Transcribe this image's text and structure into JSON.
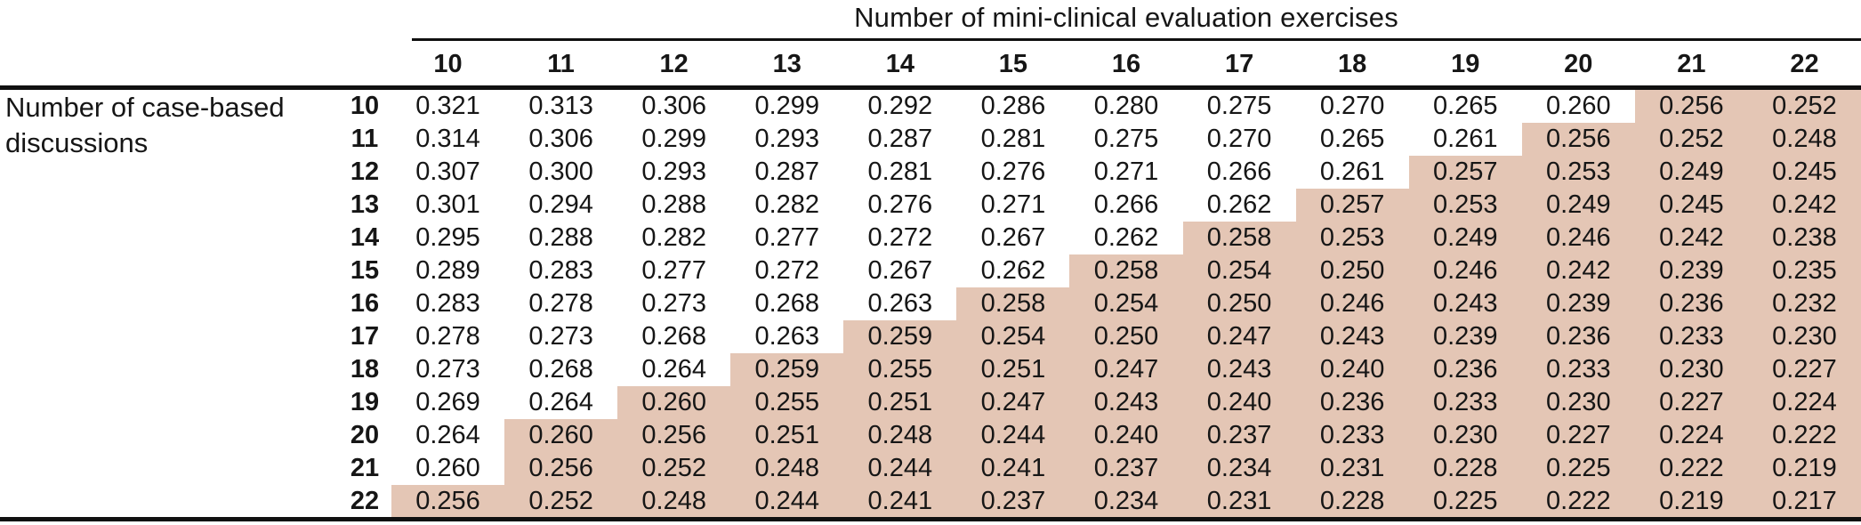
{
  "colors": {
    "highlight": "#e4c6b5",
    "rule": "#101010",
    "text": "#161616",
    "background": "#ffffff"
  },
  "table": {
    "column_group_title": "Number of mini-clinical evaluation exercises",
    "row_group_title_line1": "Number of case-based",
    "row_group_title_line2": "discussions",
    "columns": [
      "10",
      "11",
      "12",
      "13",
      "14",
      "15",
      "16",
      "17",
      "18",
      "19",
      "20",
      "21",
      "22"
    ],
    "rows": [
      {
        "label": "10",
        "highlight_from": 11,
        "values": [
          "0.321",
          "0.313",
          "0.306",
          "0.299",
          "0.292",
          "0.286",
          "0.280",
          "0.275",
          "0.270",
          "0.265",
          "0.260",
          "0.256",
          "0.252"
        ]
      },
      {
        "label": "11",
        "highlight_from": 10,
        "values": [
          "0.314",
          "0.306",
          "0.299",
          "0.293",
          "0.287",
          "0.281",
          "0.275",
          "0.270",
          "0.265",
          "0.261",
          "0.256",
          "0.252",
          "0.248"
        ]
      },
      {
        "label": "12",
        "highlight_from": 9,
        "values": [
          "0.307",
          "0.300",
          "0.293",
          "0.287",
          "0.281",
          "0.276",
          "0.271",
          "0.266",
          "0.261",
          "0.257",
          "0.253",
          "0.249",
          "0.245"
        ]
      },
      {
        "label": "13",
        "highlight_from": 8,
        "values": [
          "0.301",
          "0.294",
          "0.288",
          "0.282",
          "0.276",
          "0.271",
          "0.266",
          "0.262",
          "0.257",
          "0.253",
          "0.249",
          "0.245",
          "0.242"
        ]
      },
      {
        "label": "14",
        "highlight_from": 7,
        "values": [
          "0.295",
          "0.288",
          "0.282",
          "0.277",
          "0.272",
          "0.267",
          "0.262",
          "0.258",
          "0.253",
          "0.249",
          "0.246",
          "0.242",
          "0.238"
        ]
      },
      {
        "label": "15",
        "highlight_from": 6,
        "values": [
          "0.289",
          "0.283",
          "0.277",
          "0.272",
          "0.267",
          "0.262",
          "0.258",
          "0.254",
          "0.250",
          "0.246",
          "0.242",
          "0.239",
          "0.235"
        ]
      },
      {
        "label": "16",
        "highlight_from": 5,
        "values": [
          "0.283",
          "0.278",
          "0.273",
          "0.268",
          "0.263",
          "0.258",
          "0.254",
          "0.250",
          "0.246",
          "0.243",
          "0.239",
          "0.236",
          "0.232"
        ]
      },
      {
        "label": "17",
        "highlight_from": 4,
        "values": [
          "0.278",
          "0.273",
          "0.268",
          "0.263",
          "0.259",
          "0.254",
          "0.250",
          "0.247",
          "0.243",
          "0.239",
          "0.236",
          "0.233",
          "0.230"
        ]
      },
      {
        "label": "18",
        "highlight_from": 3,
        "values": [
          "0.273",
          "0.268",
          "0.264",
          "0.259",
          "0.255",
          "0.251",
          "0.247",
          "0.243",
          "0.240",
          "0.236",
          "0.233",
          "0.230",
          "0.227"
        ]
      },
      {
        "label": "19",
        "highlight_from": 2,
        "values": [
          "0.269",
          "0.264",
          "0.260",
          "0.255",
          "0.251",
          "0.247",
          "0.243",
          "0.240",
          "0.236",
          "0.233",
          "0.230",
          "0.227",
          "0.224"
        ]
      },
      {
        "label": "20",
        "highlight_from": 1,
        "values": [
          "0.264",
          "0.260",
          "0.256",
          "0.251",
          "0.248",
          "0.244",
          "0.240",
          "0.237",
          "0.233",
          "0.230",
          "0.227",
          "0.224",
          "0.222"
        ]
      },
      {
        "label": "21",
        "highlight_from": 1,
        "values": [
          "0.260",
          "0.256",
          "0.252",
          "0.248",
          "0.244",
          "0.241",
          "0.237",
          "0.234",
          "0.231",
          "0.228",
          "0.225",
          "0.222",
          "0.219"
        ]
      },
      {
        "label": "22",
        "highlight_from": 0,
        "values": [
          "0.256",
          "0.252",
          "0.248",
          "0.244",
          "0.241",
          "0.237",
          "0.234",
          "0.231",
          "0.228",
          "0.225",
          "0.222",
          "0.219",
          "0.217"
        ]
      }
    ]
  },
  "chart_data": {
    "type": "table",
    "title": "Number of mini-clinical evaluation exercises",
    "row_group_label": "Number of case-based discussions",
    "columns": [
      10,
      11,
      12,
      13,
      14,
      15,
      16,
      17,
      18,
      19,
      20,
      21,
      22
    ],
    "row_labels": [
      10,
      11,
      12,
      13,
      14,
      15,
      16,
      17,
      18,
      19,
      20,
      21,
      22
    ],
    "values": [
      [
        0.321,
        0.313,
        0.306,
        0.299,
        0.292,
        0.286,
        0.28,
        0.275,
        0.27,
        0.265,
        0.26,
        0.256,
        0.252
      ],
      [
        0.314,
        0.306,
        0.299,
        0.293,
        0.287,
        0.281,
        0.275,
        0.27,
        0.265,
        0.261,
        0.256,
        0.252,
        0.248
      ],
      [
        0.307,
        0.3,
        0.293,
        0.287,
        0.281,
        0.276,
        0.271,
        0.266,
        0.261,
        0.257,
        0.253,
        0.249,
        0.245
      ],
      [
        0.301,
        0.294,
        0.288,
        0.282,
        0.276,
        0.271,
        0.266,
        0.262,
        0.257,
        0.253,
        0.249,
        0.245,
        0.242
      ],
      [
        0.295,
        0.288,
        0.282,
        0.277,
        0.272,
        0.267,
        0.262,
        0.258,
        0.253,
        0.249,
        0.246,
        0.242,
        0.238
      ],
      [
        0.289,
        0.283,
        0.277,
        0.272,
        0.267,
        0.262,
        0.258,
        0.254,
        0.25,
        0.246,
        0.242,
        0.239,
        0.235
      ],
      [
        0.283,
        0.278,
        0.273,
        0.268,
        0.263,
        0.258,
        0.254,
        0.25,
        0.246,
        0.243,
        0.239,
        0.236,
        0.232
      ],
      [
        0.278,
        0.273,
        0.268,
        0.263,
        0.259,
        0.254,
        0.25,
        0.247,
        0.243,
        0.239,
        0.236,
        0.233,
        0.23
      ],
      [
        0.273,
        0.268,
        0.264,
        0.259,
        0.255,
        0.251,
        0.247,
        0.243,
        0.24,
        0.236,
        0.233,
        0.23,
        0.227
      ],
      [
        0.269,
        0.264,
        0.26,
        0.255,
        0.251,
        0.247,
        0.243,
        0.24,
        0.236,
        0.233,
        0.23,
        0.227,
        0.224
      ],
      [
        0.264,
        0.26,
        0.256,
        0.251,
        0.248,
        0.244,
        0.24,
        0.237,
        0.233,
        0.23,
        0.227,
        0.224,
        0.222
      ],
      [
        0.26,
        0.256,
        0.252,
        0.248,
        0.244,
        0.241,
        0.237,
        0.234,
        0.231,
        0.228,
        0.225,
        0.222,
        0.219
      ],
      [
        0.256,
        0.252,
        0.248,
        0.244,
        0.241,
        0.237,
        0.234,
        0.231,
        0.228,
        0.225,
        0.222,
        0.219,
        0.217
      ]
    ],
    "highlight_from_col_index": [
      11,
      10,
      9,
      8,
      7,
      6,
      5,
      4,
      3,
      2,
      1,
      1,
      0
    ],
    "legend_position": "none",
    "grid": false
  }
}
